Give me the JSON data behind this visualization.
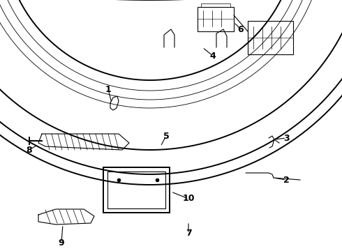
{
  "bg_color": "#ffffff",
  "line_color": "#000000",
  "fig_width": 4.9,
  "fig_height": 3.6,
  "dpi": 100,
  "label_fontsize": 9,
  "lw_main": 1.4,
  "lw_thin": 0.8,
  "lw_hair": 0.5
}
